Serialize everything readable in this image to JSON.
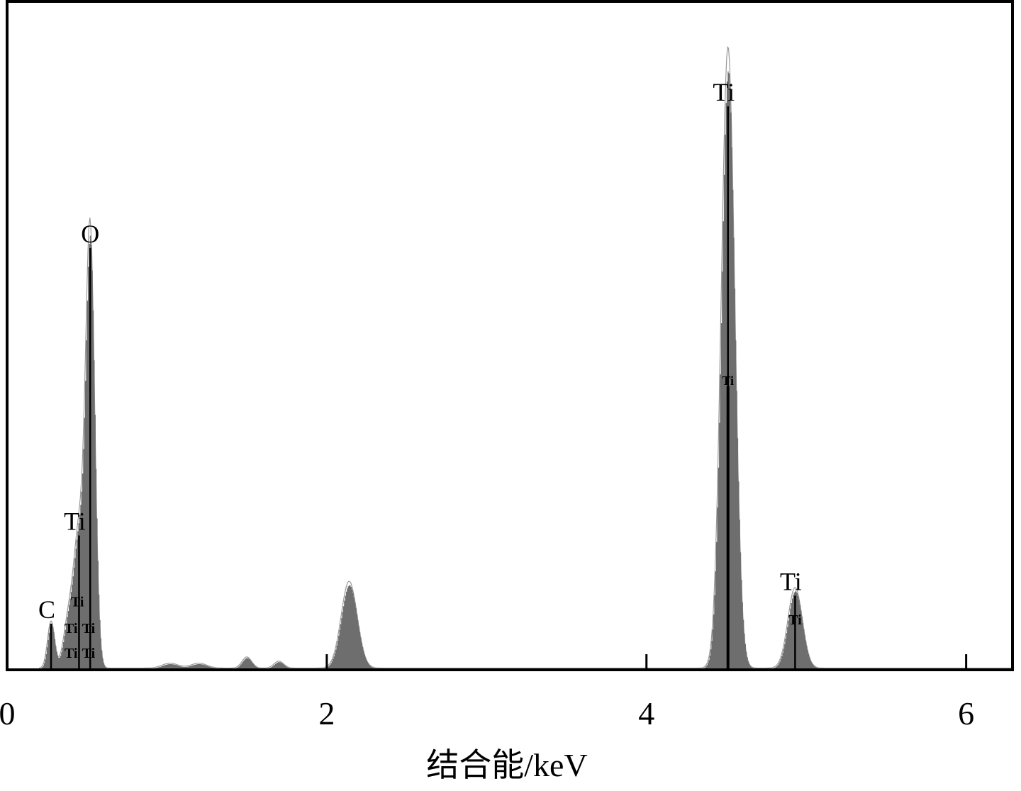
{
  "chart_data": {
    "type": "area",
    "title": "",
    "xlabel": "结合能/keV",
    "ylabel": "",
    "xlim": [
      0,
      6.29
    ],
    "ylim": [
      0,
      100
    ],
    "x_ticks": [
      {
        "value": 0,
        "label": "0"
      },
      {
        "value": 2,
        "label": "2"
      },
      {
        "value": 4,
        "label": "4"
      },
      {
        "value": 6,
        "label": "6"
      }
    ],
    "grid": false,
    "fill_color": "#6e6e6e",
    "outline_color": "#9a9a9a",
    "peaks": [
      {
        "energy": 0.275,
        "height": 6.8,
        "sigma": 0.022
      },
      {
        "energy": 0.38,
        "height": 6.0,
        "sigma": 0.03
      },
      {
        "energy": 0.45,
        "height": 19.5,
        "sigma": 0.035
      },
      {
        "energy": 0.52,
        "height": 62,
        "sigma": 0.028
      },
      {
        "energy": 1.02,
        "height": 0.7,
        "sigma": 0.05
      },
      {
        "energy": 1.2,
        "height": 0.7,
        "sigma": 0.05
      },
      {
        "energy": 1.5,
        "height": 1.6,
        "sigma": 0.03
      },
      {
        "energy": 1.7,
        "height": 1.0,
        "sigma": 0.03
      },
      {
        "energy": 2.14,
        "height": 12.5,
        "sigma": 0.05
      },
      {
        "energy": 4.51,
        "height": 89.5,
        "sigma": 0.042
      },
      {
        "energy": 4.93,
        "height": 11.6,
        "sigma": 0.045
      }
    ],
    "markers": [
      {
        "energy": 0.275,
        "top": 6.9,
        "label": "C",
        "size": "large"
      },
      {
        "energy": 0.45,
        "top": 20.1,
        "label": "Ti",
        "size": "large"
      },
      {
        "energy": 0.52,
        "top": 63.1,
        "label": "O",
        "size": "large"
      },
      {
        "energy": 4.51,
        "top": 84.3,
        "label": "Ti",
        "size": "large"
      },
      {
        "energy": 4.51,
        "top": 42.4,
        "label": "Ti",
        "size": "small"
      },
      {
        "energy": 4.93,
        "top": 11.1,
        "label": "Ti",
        "size": "large"
      }
    ],
    "minor_labels": [
      {
        "energy": 0.44,
        "level": 9.5,
        "label": "Ti"
      },
      {
        "energy": 0.4,
        "level": 5.5,
        "label": "Ti"
      },
      {
        "energy": 0.51,
        "level": 5.5,
        "label": "Ti"
      },
      {
        "energy": 0.4,
        "level": 1.8,
        "label": "Ti"
      },
      {
        "energy": 0.51,
        "level": 1.8,
        "label": "Ti"
      },
      {
        "energy": 4.93,
        "level": 6.8,
        "label": "Ti"
      }
    ]
  }
}
